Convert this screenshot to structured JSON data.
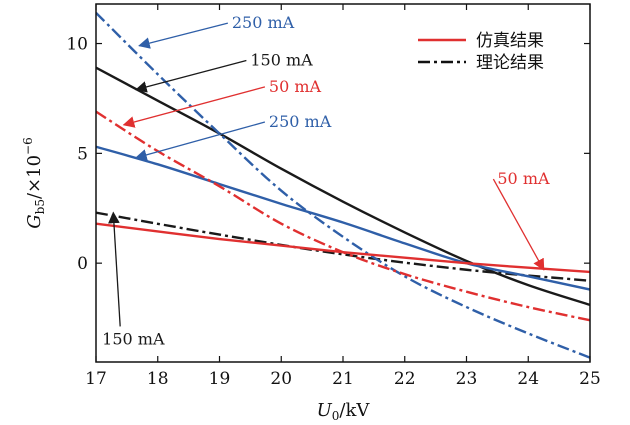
{
  "chart_data": {
    "type": "line",
    "xlabel_main": "U",
    "xlabel_sub": "0",
    "xlabel_unit": "/kV",
    "ylabel_main": "G",
    "ylabel_sub": "b5",
    "ylabel_unit": "/×10",
    "ylabel_exp": "−6",
    "xlim": [
      17,
      25
    ],
    "ylim": [
      -4.5,
      11.8
    ],
    "xticks": [
      17,
      18,
      19,
      20,
      21,
      22,
      23,
      24,
      25
    ],
    "yticks": [
      0,
      5,
      10
    ],
    "grid": false,
    "legend_position": "top-right",
    "legend": [
      {
        "label": "仿真结果",
        "style": "solid",
        "color": "#e03030"
      },
      {
        "label": "理论结果",
        "style": "dashdot",
        "color": "#111111"
      }
    ],
    "colors": {
      "red": "#e03030",
      "blue": "#2f5fa8",
      "black": "#1a1a1a"
    },
    "series": [
      {
        "style": "solid",
        "color": "black",
        "x": [
          17,
          18,
          19,
          20,
          21,
          22,
          23,
          24,
          25
        ],
        "y": [
          8.9,
          7.4,
          5.9,
          4.3,
          2.8,
          1.4,
          0.1,
          -1.0,
          -1.9
        ]
      },
      {
        "style": "dashdot",
        "color": "black",
        "x": [
          17,
          19,
          21,
          23,
          25
        ],
        "y": [
          2.3,
          1.3,
          0.4,
          -0.3,
          -0.8
        ]
      },
      {
        "style": "solid",
        "color": "blue",
        "x": [
          17,
          18,
          19,
          20,
          21,
          22,
          23,
          24,
          25
        ],
        "y": [
          5.3,
          4.5,
          3.6,
          2.7,
          1.85,
          0.9,
          0.0,
          -0.6,
          -1.2
        ]
      },
      {
        "style": "dashdot",
        "color": "blue",
        "x": [
          17,
          18,
          19,
          20,
          21,
          22,
          23,
          24,
          25
        ],
        "y": [
          11.4,
          8.6,
          5.9,
          3.3,
          1.2,
          -0.6,
          -2.0,
          -3.2,
          -4.3
        ]
      },
      {
        "style": "solid",
        "color": "red",
        "x": [
          17,
          19,
          21,
          23,
          25
        ],
        "y": [
          1.8,
          1.1,
          0.5,
          0.0,
          -0.4
        ]
      },
      {
        "style": "dashdot",
        "color": "red",
        "x": [
          17,
          18,
          19,
          20,
          21,
          22,
          23,
          24,
          25
        ],
        "y": [
          6.9,
          5.1,
          3.5,
          1.8,
          0.5,
          -0.5,
          -1.3,
          -2.0,
          -2.6
        ]
      }
    ],
    "annotations": [
      {
        "text": "250 mA",
        "color": "blue",
        "text_x": 19.2,
        "text_y": 10.7,
        "arrow_x": 17.7,
        "arrow_y": 9.9
      },
      {
        "text": "150 mA",
        "color": "black",
        "text_x": 19.5,
        "text_y": 9.0,
        "arrow_x": 17.65,
        "arrow_y": 7.9
      },
      {
        "text": "50 mA",
        "color": "red",
        "text_x": 19.8,
        "text_y": 7.8,
        "arrow_x": 17.45,
        "arrow_y": 6.3
      },
      {
        "text": "250 mA",
        "color": "blue",
        "text_x": 19.8,
        "text_y": 6.2,
        "arrow_x": 17.65,
        "arrow_y": 4.8
      },
      {
        "text": "50 mA",
        "color": "red",
        "text_x": 23.5,
        "text_y": 3.6,
        "arrow_x": 24.25,
        "arrow_y": -0.3
      },
      {
        "text": "150 mA",
        "color": "black",
        "text_x": 17.1,
        "text_y": -3.7,
        "arrow_x": 17.28,
        "arrow_y": 2.3
      }
    ]
  }
}
